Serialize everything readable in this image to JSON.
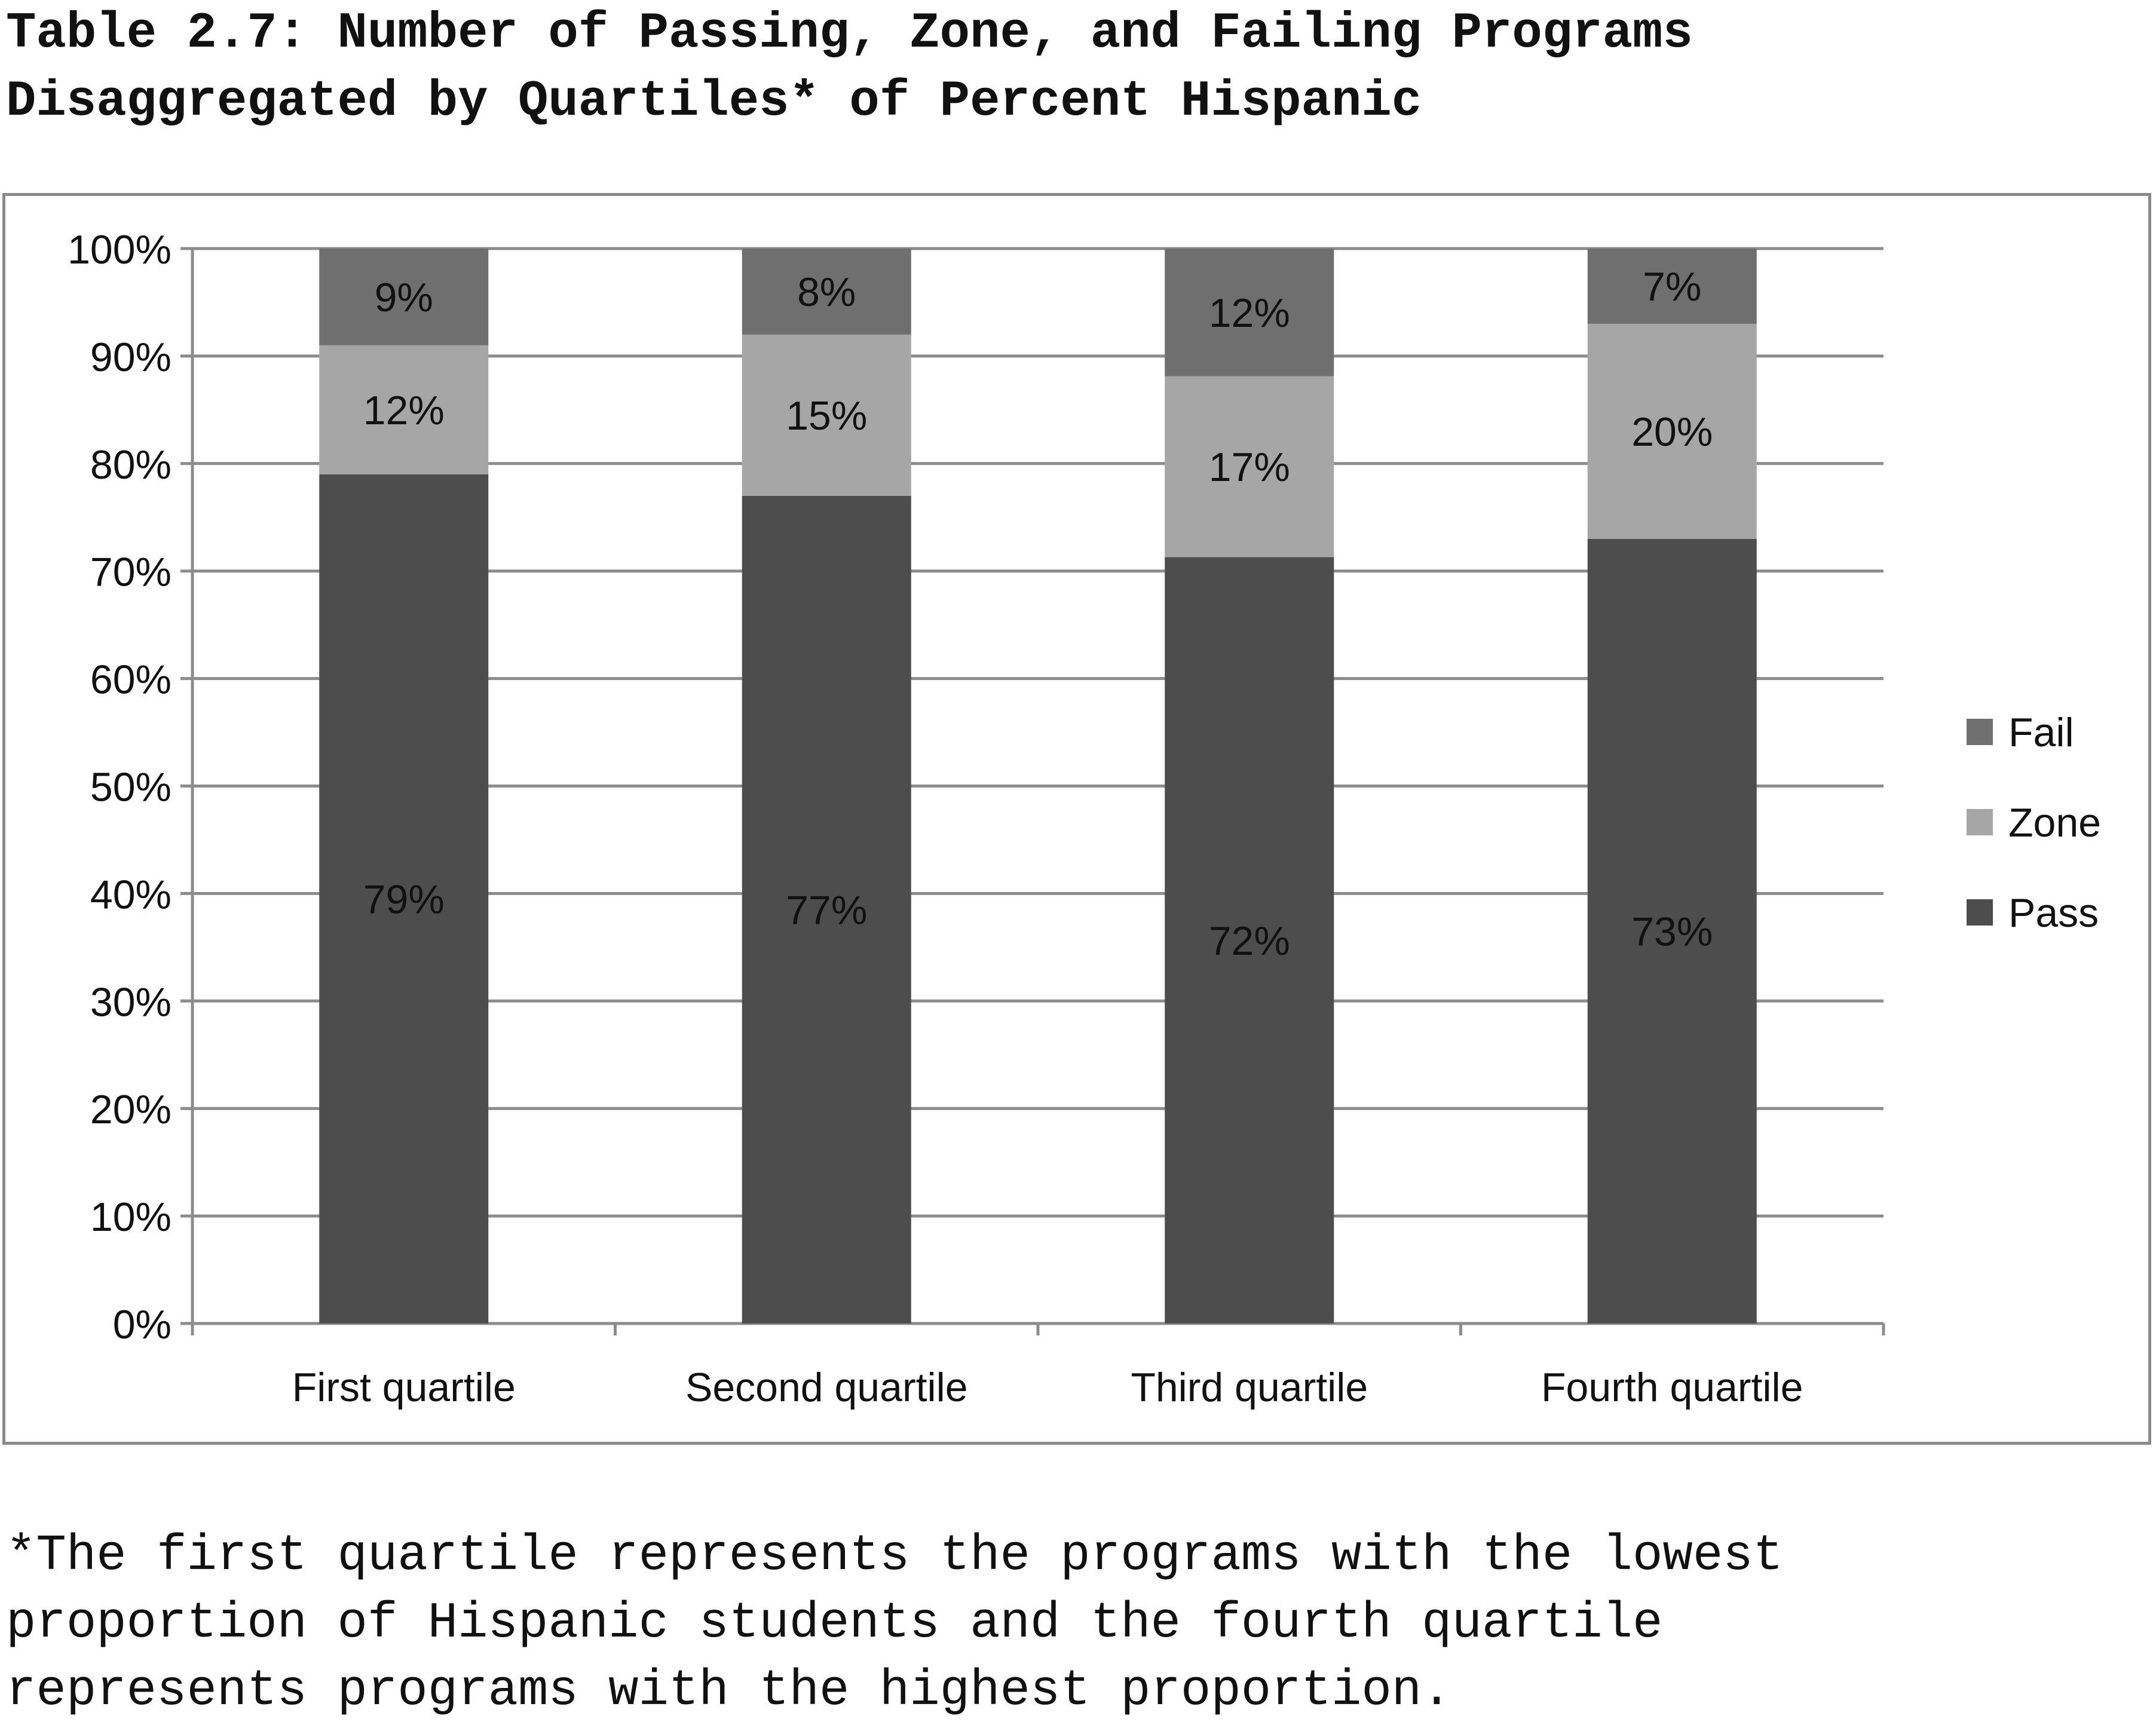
{
  "title": {
    "line1": "Table 2.7: Number of Passing, Zone, and Failing Programs",
    "line2": "Disaggregated by Quartiles* of Percent Hispanic"
  },
  "footnote": {
    "line1": "*The first quartile represents the programs with the lowest",
    "line2": "proportion of Hispanic students and the fourth quartile",
    "line3": "represents programs with the highest proportion."
  },
  "chart_data": {
    "type": "bar",
    "stacked": true,
    "percent_stacked": true,
    "categories": [
      "First quartile",
      "Second quartile",
      "Third quartile",
      "Fourth quartile"
    ],
    "series": [
      {
        "name": "Pass",
        "values": [
          79,
          77,
          72,
          73
        ],
        "labels": [
          "79%",
          "77%",
          "72%",
          "73%"
        ],
        "color": "#4d4d4d"
      },
      {
        "name": "Zone",
        "values": [
          12,
          15,
          17,
          20
        ],
        "labels": [
          "12%",
          "15%",
          "17%",
          "20%"
        ],
        "color": "#a6a6a6"
      },
      {
        "name": "Fail",
        "values": [
          9,
          8,
          12,
          7
        ],
        "labels": [
          "9%",
          "8%",
          "12%",
          "7%"
        ],
        "color": "#6f6f6f"
      }
    ],
    "y_ticks": [
      "0%",
      "10%",
      "20%",
      "30%",
      "40%",
      "50%",
      "60%",
      "70%",
      "80%",
      "90%",
      "100%"
    ],
    "ylim": [
      0,
      100
    ],
    "grid": true,
    "legend": {
      "position": "right",
      "order": [
        "Fail",
        "Zone",
        "Pass"
      ]
    },
    "xlabel": "",
    "ylabel": ""
  }
}
